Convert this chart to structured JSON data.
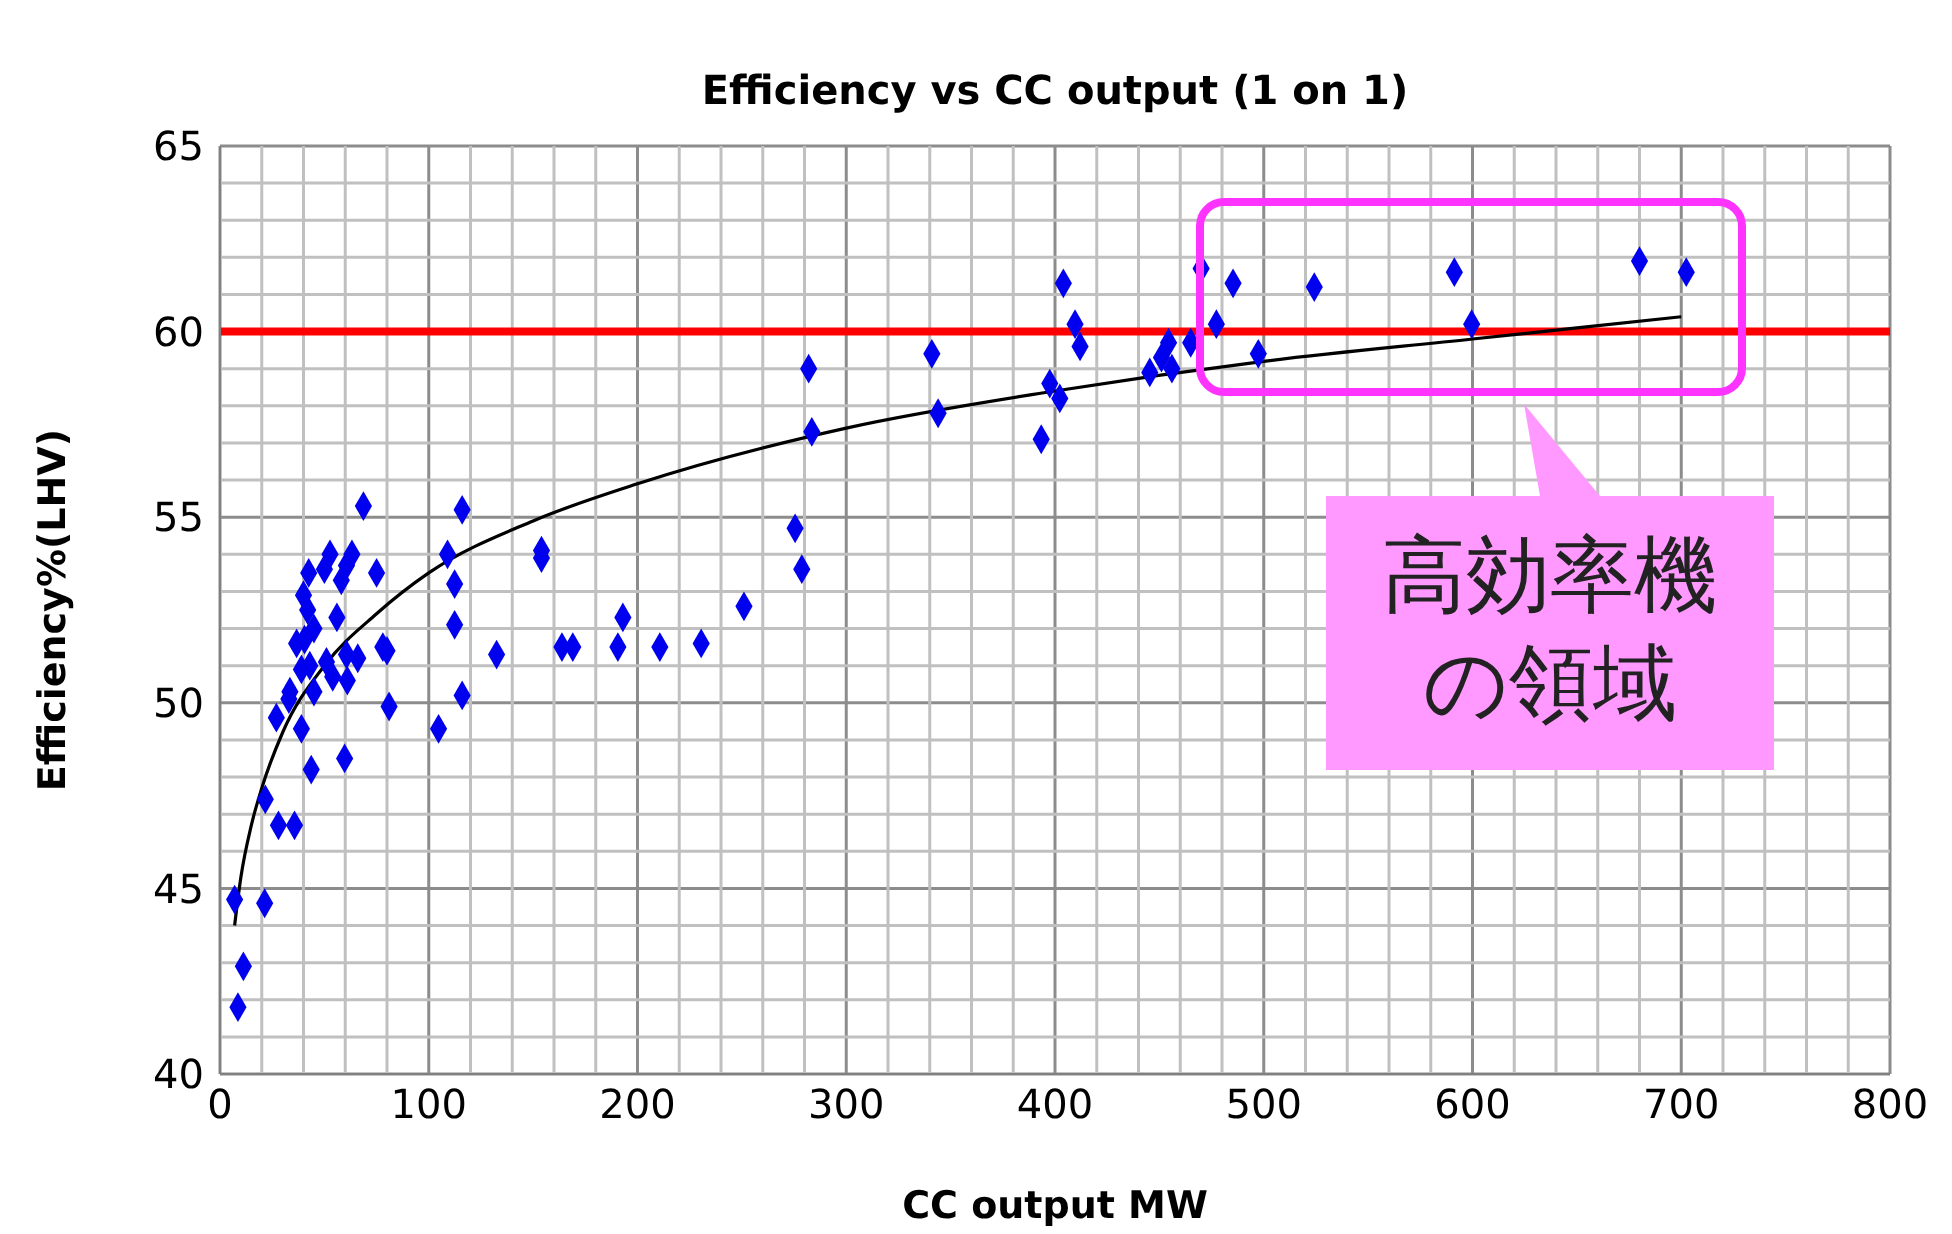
{
  "chart_data": {
    "type": "scatter",
    "title": "Efficiency vs CC output (1 on 1)",
    "xlabel": "CC output MW",
    "ylabel": "Efficiency%(LHV)",
    "xlim": [
      0,
      800
    ],
    "xticks": [
      0,
      100,
      200,
      300,
      400,
      500,
      600,
      700,
      800
    ],
    "ylim": [
      40,
      65
    ],
    "yticks": [
      40,
      45,
      50,
      55,
      60,
      65
    ],
    "grid": true,
    "marker": "diamond",
    "ref_lines": [
      {
        "axis": "y",
        "value": 60,
        "color": "#ff0000"
      }
    ],
    "annotations": [
      "高効率機",
      "の領域"
    ],
    "series": [
      {
        "color": "#0000ee",
        "x": [
          68.7,
          116,
          52.7,
          63.2,
          42.5,
          50,
          60.6,
          58.1,
          75,
          109,
          154,
          154,
          40,
          42,
          56,
          112.4,
          112.4,
          45,
          36.7,
          40.5,
          78,
          80,
          39,
          43,
          51,
          60.6,
          66,
          132.5,
          45,
          33.5,
          54,
          61,
          33,
          27,
          116,
          81,
          104.7,
          39,
          43.7,
          59.7,
          21.7,
          28,
          35.7,
          7,
          21.4,
          11.2,
          8.6,
          163.8,
          169,
          193,
          190.6,
          210.7,
          230.5,
          251,
          275.5,
          278.7,
          282,
          283.5,
          341,
          344,
          393.4,
          397.5,
          402.3,
          409.6,
          412,
          445.4,
          404,
          451,
          454.4,
          456,
          465,
          470,
          477.3,
          485.3,
          497.4,
          524.2,
          591.3,
          599.6,
          680,
          702.4
        ],
        "values": [
          55.3,
          55.2,
          54.0,
          54.0,
          53.5,
          53.6,
          53.7,
          53.3,
          53.5,
          54.0,
          54.1,
          53.9,
          52.9,
          52.5,
          52.3,
          53.2,
          52.1,
          52.0,
          51.6,
          51.7,
          51.5,
          51.4,
          50.9,
          51.0,
          51.1,
          51.3,
          51.2,
          51.3,
          50.3,
          50.3,
          50.7,
          50.6,
          50.1,
          49.6,
          50.2,
          49.9,
          49.3,
          49.3,
          48.2,
          48.5,
          47.4,
          46.7,
          46.7,
          44.7,
          44.6,
          42.9,
          41.8,
          51.5,
          51.5,
          52.3,
          51.5,
          51.5,
          51.6,
          52.6,
          54.7,
          53.6,
          59.0,
          57.3,
          59.4,
          57.8,
          57.1,
          58.6,
          58.2,
          60.2,
          59.6,
          58.9,
          61.3,
          59.3,
          59.7,
          59.0,
          59.7,
          61.7,
          60.2,
          61.3,
          59.4,
          61.2,
          61.6,
          60.2,
          61.9,
          61.6
        ]
      },
      {
        "type": "line",
        "color": "#000000",
        "marker": "none",
        "x": [
          7,
          10,
          15,
          20,
          30,
          50,
          75,
          100,
          150,
          200,
          300,
          400,
          500,
          600,
          700
        ],
        "values": [
          44.0,
          45.3,
          46.7,
          47.7,
          49.2,
          51.0,
          52.4,
          53.5,
          54.9,
          55.9,
          57.4,
          58.4,
          59.2,
          59.8,
          60.4
        ]
      }
    ]
  }
}
